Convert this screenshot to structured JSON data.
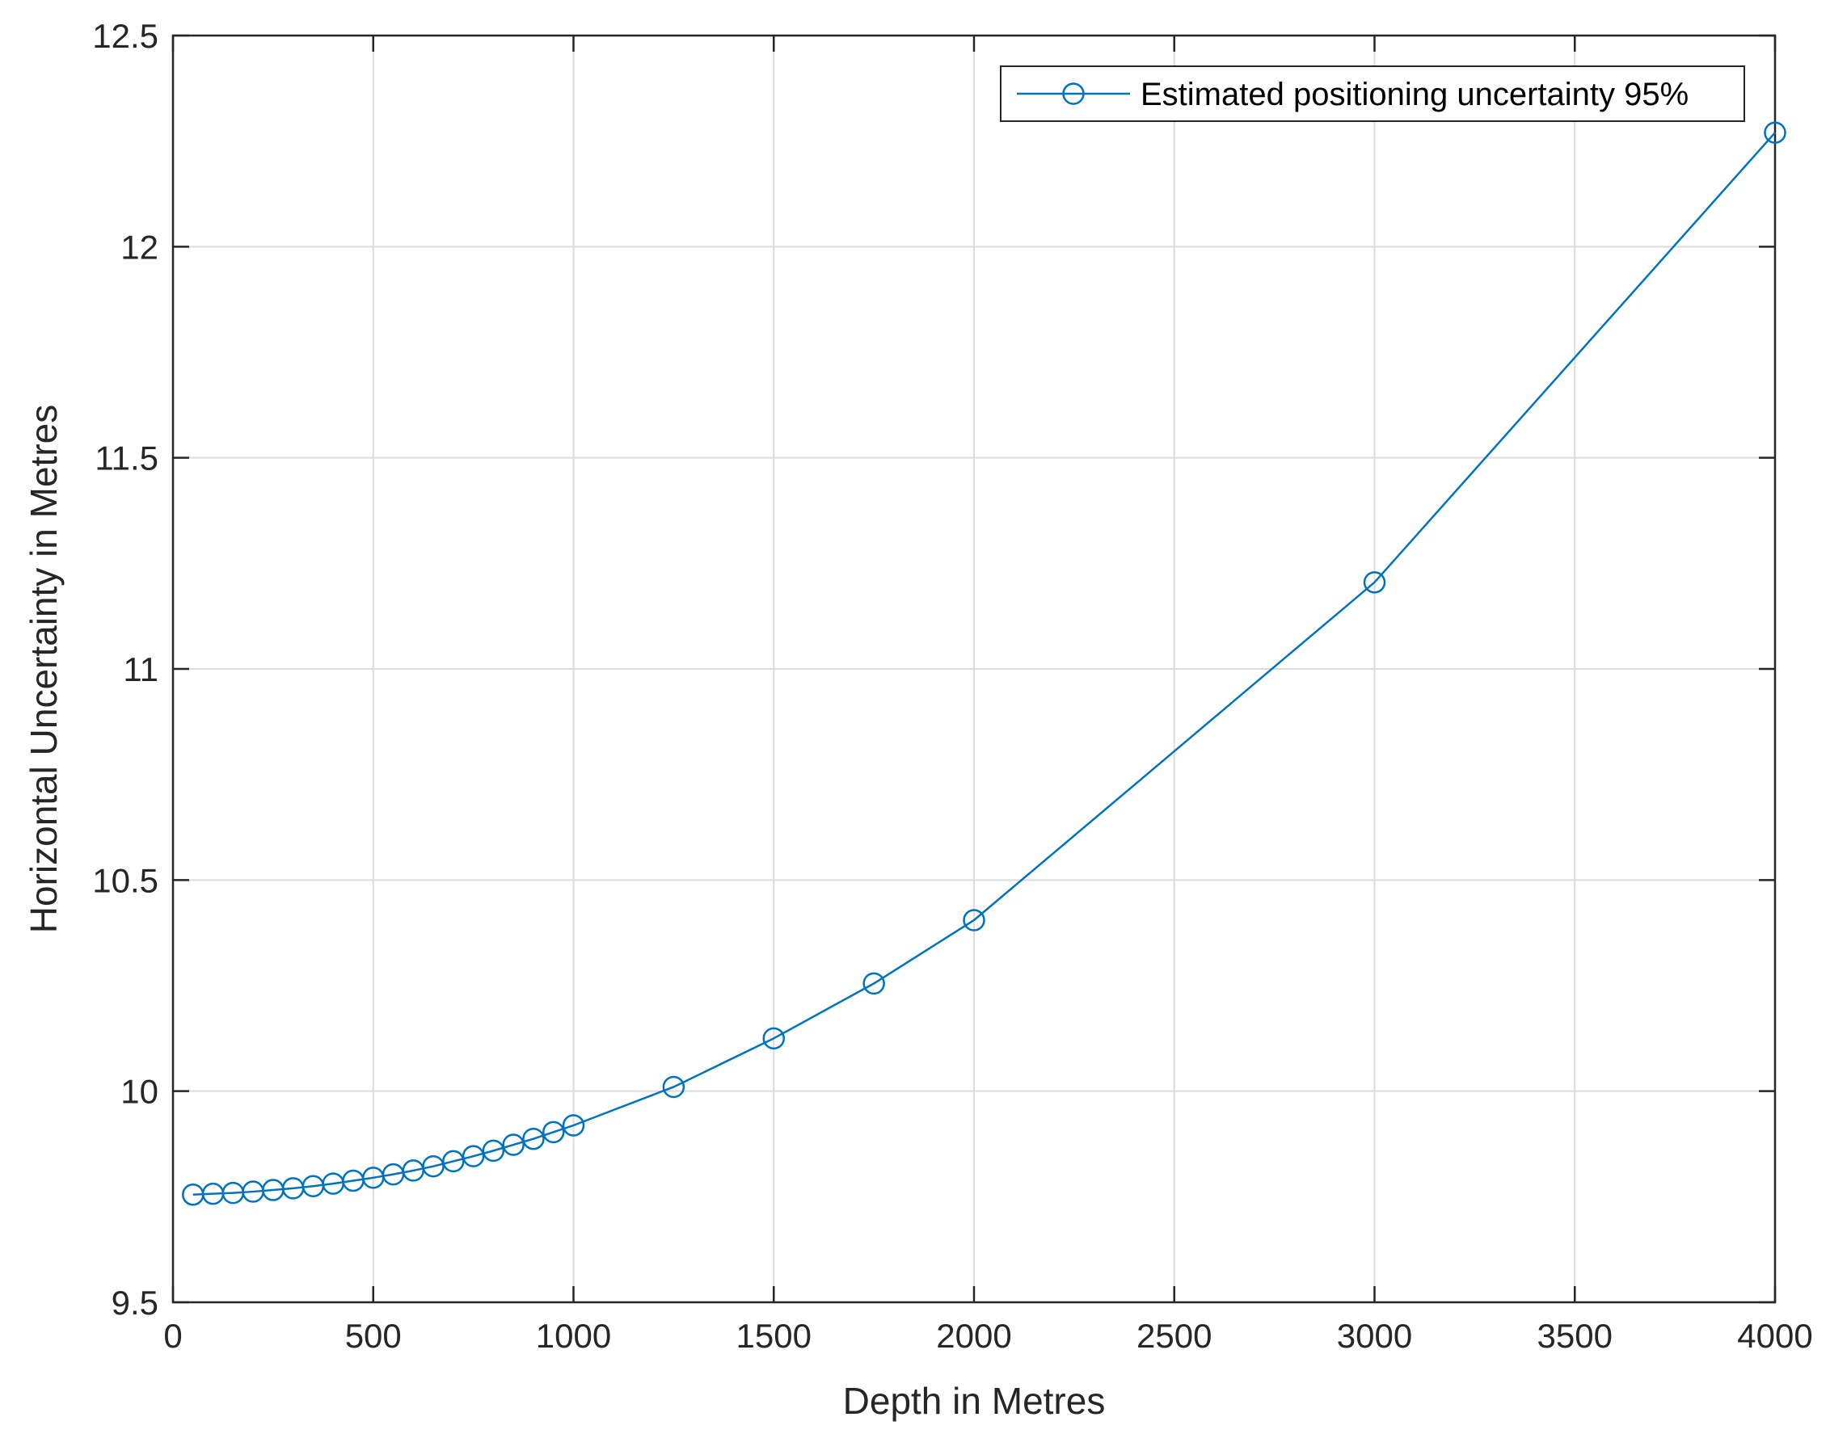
{
  "chart_data": {
    "type": "line",
    "title": "",
    "xlabel": "Depth in Metres",
    "ylabel": "Horizontal Uncertainty in Metres",
    "xlim": [
      0,
      4000
    ],
    "ylim": [
      9.5,
      12.5
    ],
    "x_ticks": [
      0,
      500,
      1000,
      1500,
      2000,
      2500,
      3000,
      3500,
      4000
    ],
    "y_ticks": [
      9.5,
      10,
      10.5,
      11,
      11.5,
      12,
      12.5
    ],
    "x_tick_labels": [
      "0",
      "500",
      "1000",
      "1500",
      "2000",
      "2500",
      "3000",
      "3500",
      "4000"
    ],
    "y_tick_labels": [
      "9.5",
      "10",
      "10.5",
      "11",
      "11.5",
      "12",
      "12.5"
    ],
    "grid": true,
    "box": true,
    "legend_position": "top-right",
    "series": [
      {
        "name": "Estimated positioning uncertainty 95%",
        "color": "#0072BD",
        "marker": "circle-open",
        "x": [
          50,
          100,
          150,
          200,
          250,
          300,
          350,
          400,
          450,
          500,
          550,
          600,
          650,
          700,
          750,
          800,
          850,
          900,
          950,
          1000,
          1250,
          1500,
          1750,
          2000,
          3000,
          4000
        ],
        "y": [
          9.755,
          9.757,
          9.759,
          9.762,
          9.766,
          9.77,
          9.775,
          9.781,
          9.788,
          9.795,
          9.803,
          9.812,
          9.822,
          9.834,
          9.846,
          9.859,
          9.873,
          9.887,
          9.903,
          9.919,
          10.01,
          10.125,
          10.255,
          10.405,
          11.205,
          12.27
        ]
      }
    ]
  }
}
